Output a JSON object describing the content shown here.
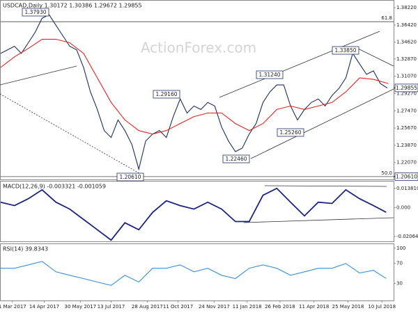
{
  "chart_data": [
    {
      "type": "line",
      "title": "USDCAD,Daily 1.30172 1.30386 1.29672 1.29855",
      "watermark": "ActionForex.com",
      "xlim": [
        0,
        370
      ],
      "ylim": [
        1.2031,
        1.3895
      ],
      "yticks": [
        {
          "value": 1.3822,
          "label": "1.38220"
        },
        {
          "value": 1.3642,
          "label": "1.36420"
        },
        {
          "value": 1.3462,
          "label": "1.34620"
        },
        {
          "value": 1.3287,
          "label": "1.32870"
        },
        {
          "value": 1.3107,
          "label": "1.31070"
        },
        {
          "value": 1.2927,
          "label": "1.29270"
        },
        {
          "value": 1.2747,
          "label": "1.27470"
        },
        {
          "value": 1.2567,
          "label": "1.25670"
        },
        {
          "value": 1.2387,
          "label": "1.23870"
        },
        {
          "value": 1.2207,
          "label": "1.22070"
        }
      ],
      "series": [
        {
          "color": "#1c2f5e",
          "x": [
            0,
            6.5,
            13,
            19.5,
            26,
            32.5,
            39,
            45.5,
            52,
            58.5,
            65,
            71.5,
            78,
            84.5,
            91,
            97.5,
            104,
            110.5,
            117,
            123.5,
            130,
            136.5,
            143,
            149.5,
            156,
            162.5,
            169,
            175.5,
            182,
            188.5,
            195,
            201.5,
            208,
            214.5,
            221,
            227.5,
            234,
            240.5,
            247,
            253.5,
            260,
            266.5,
            273,
            279.5,
            286,
            292.5,
            299,
            305.5,
            312,
            318.5,
            325,
            331.5,
            338,
            344.5,
            351,
            357.5,
            364
          ],
          "values": [
            1.3346,
            1.3383,
            1.342,
            1.3346,
            1.3456,
            1.3566,
            1.3712,
            1.3749,
            1.3639,
            1.3529,
            1.342,
            1.3383,
            1.32,
            1.2944,
            1.2761,
            1.2541,
            1.2468,
            1.2651,
            1.2541,
            1.2395,
            1.2138,
            1.2431,
            1.2504,
            1.2541,
            1.2468,
            1.2687,
            1.287,
            1.2724,
            1.2797,
            1.2761,
            1.2834,
            1.2797,
            1.2578,
            1.2431,
            1.2321,
            1.2358,
            1.2504,
            1.2614,
            1.2834,
            1.2944,
            1.3017,
            1.3017,
            1.2797,
            1.2651,
            1.2761,
            1.2834,
            1.287,
            1.2797,
            1.2907,
            1.298,
            1.309,
            1.3346,
            1.3236,
            1.3127,
            1.3163,
            1.3031,
            1.2985
          ]
        },
        {
          "color": "#e02424",
          "x": [
            0,
            13,
            26,
            39,
            52,
            65,
            78,
            91,
            104,
            117,
            130,
            143,
            156,
            169,
            182,
            195,
            208,
            221,
            234,
            247,
            260,
            273,
            286,
            299,
            312,
            325,
            338,
            351,
            365
          ],
          "values": [
            1.32,
            1.331,
            1.3397,
            1.3493,
            1.3493,
            1.3456,
            1.3346,
            1.309,
            1.2834,
            1.2651,
            1.2541,
            1.2504,
            1.2541,
            1.2614,
            1.2687,
            1.2724,
            1.2724,
            1.2614,
            1.2541,
            1.2614,
            1.2761,
            1.2797,
            1.2761,
            1.2797,
            1.2834,
            1.2944,
            1.309,
            1.3075,
            1.3031
          ]
        }
      ],
      "reference_lines": [
        {
          "label": "61.8",
          "value": 1.3676
        },
        {
          "label": "50.0",
          "value": 1.2061
        }
      ],
      "annotations": [
        "1.37930",
        "1.20610",
        "1.29160",
        "1.22460",
        "1.31240",
        "1.25260",
        "1.33850"
      ],
      "last_price": 1.29855,
      "low_marker": {
        "value": 1.2061,
        "label": "1.20610"
      }
    },
    {
      "type": "line",
      "title": "MACD(12,26,9) -0.003321 -0.001059",
      "xlim": [
        0,
        370
      ],
      "ylim": [
        -0.0241,
        0.0187
      ],
      "yticks": [
        {
          "value": 0.01381,
          "label": "0.013810"
        },
        {
          "value": 0,
          "label": "0.000"
        },
        {
          "value": -0.020648,
          "label": "-0.020648"
        }
      ],
      "series": [
        {
          "color": "#1a237e",
          "x": [
            0,
            13,
            26,
            39,
            52,
            65,
            78,
            91,
            104,
            117,
            130,
            143,
            156,
            169,
            182,
            195,
            208,
            221,
            234,
            247,
            260,
            273,
            286,
            299,
            312,
            325,
            338,
            351,
            363
          ],
          "values": [
            0.0039,
            0.0015,
            0.0064,
            0.0128,
            0.0039,
            -0.001,
            -0.0084,
            -0.0158,
            -0.0232,
            -0.0108,
            -0.0158,
            -0.0034,
            0.0049,
            0.0015,
            -0.001,
            0.0039,
            -0.001,
            -0.0099,
            -0.0099,
            0.0089,
            0.0138,
            0.0039,
            -0.0059,
            0.0039,
            0.003,
            0.0128,
            0.0064,
            0.0015,
            -0.0033
          ]
        }
      ]
    },
    {
      "type": "line",
      "title": "RSI(14) 39.8343",
      "xlim": [
        0,
        370
      ],
      "ylim": [
        -4,
        108
      ],
      "yticks": [
        100,
        70,
        30
      ],
      "xticks": [
        {
          "value": 11,
          "label": "1 Mar 2017"
        },
        {
          "value": 41,
          "label": "14 Apr 2017"
        },
        {
          "value": 75,
          "label": "30 May 2017"
        },
        {
          "value": 104,
          "label": "13 Jul 2017"
        },
        {
          "value": 138,
          "label": "28 Aug 2017"
        },
        {
          "value": 167,
          "label": "11 Oct 2017"
        },
        {
          "value": 201,
          "label": "24 Nov 2017"
        },
        {
          "value": 232,
          "label": "11 Jan 2018"
        },
        {
          "value": 263,
          "label": "26 Feb 2018"
        },
        {
          "value": 295,
          "label": "11 Apr 2018"
        },
        {
          "value": 327,
          "label": "25 May 2018"
        },
        {
          "value": 359,
          "label": "10 Jul 2018"
        }
      ],
      "series": [
        {
          "color": "#3a8fd8",
          "x": [
            0,
            13,
            26,
            39,
            52,
            65,
            78,
            91,
            104,
            117,
            130,
            143,
            156,
            169,
            182,
            195,
            208,
            221,
            234,
            247,
            260,
            273,
            286,
            299,
            312,
            325,
            338,
            351,
            363
          ],
          "values": [
            60,
            60,
            66.8,
            73.7,
            53,
            46,
            39.5,
            32.7,
            26,
            46,
            32.7,
            60,
            60,
            66.8,
            53,
            60,
            46,
            39.5,
            60,
            66.8,
            60,
            46,
            53,
            60,
            60,
            69.6,
            50.5,
            56,
            39.8
          ]
        }
      ]
    }
  ]
}
